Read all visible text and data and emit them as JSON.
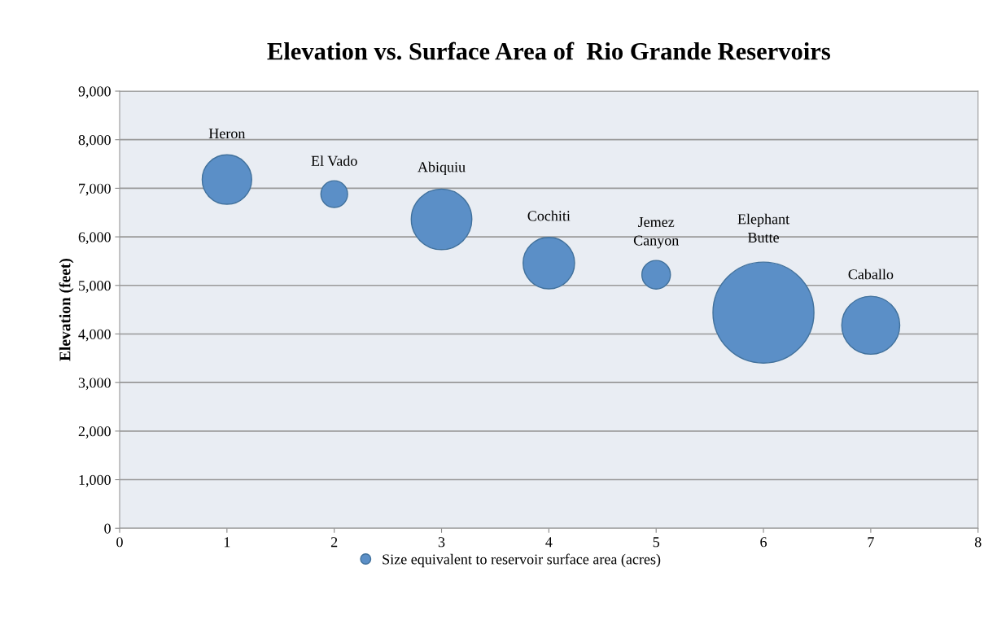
{
  "chart_data": {
    "type": "bubble",
    "title": "Elevation vs. Surface Area of  Rio Grande Reservoirs",
    "ylabel": "Elevation (feet)",
    "x": [
      1,
      2,
      3,
      4,
      5,
      6,
      7
    ],
    "series": [
      {
        "name": "Size equivalent to reservoir surface area (acres)",
        "color": "#5b8fc7",
        "values": [
          7180,
          6880,
          6360,
          5460,
          5220,
          4440,
          4180
        ],
        "sizes": [
          0.24,
          0.07,
          0.36,
          0.26,
          0.08,
          1,
          0.33
        ],
        "value_labels": [
          "Heron",
          "El Vado",
          "Abiquiu",
          "Cochiti",
          "Jemez Canyon",
          "Elephant Butte",
          "Caballo"
        ]
      }
    ],
    "xlim": [
      0,
      8
    ],
    "xticks": [
      0,
      1,
      2,
      3,
      4,
      5,
      6,
      7,
      8
    ],
    "ylim": [
      0,
      9000
    ],
    "yticks": [
      0,
      {
        "value": 1000,
        "label": "1,000"
      },
      {
        "value": 2000,
        "label": "2,000"
      },
      {
        "value": 3000,
        "label": "3,000"
      },
      {
        "value": 4000,
        "label": "4,000"
      },
      {
        "value": 5000,
        "label": "5,000"
      },
      {
        "value": 6000,
        "label": "6,000"
      },
      {
        "value": 7000,
        "label": "7,000"
      },
      {
        "value": 8000,
        "label": "8,000"
      },
      {
        "value": 9000,
        "label": "9,000"
      }
    ],
    "grid": "y",
    "legend": "bottom"
  }
}
